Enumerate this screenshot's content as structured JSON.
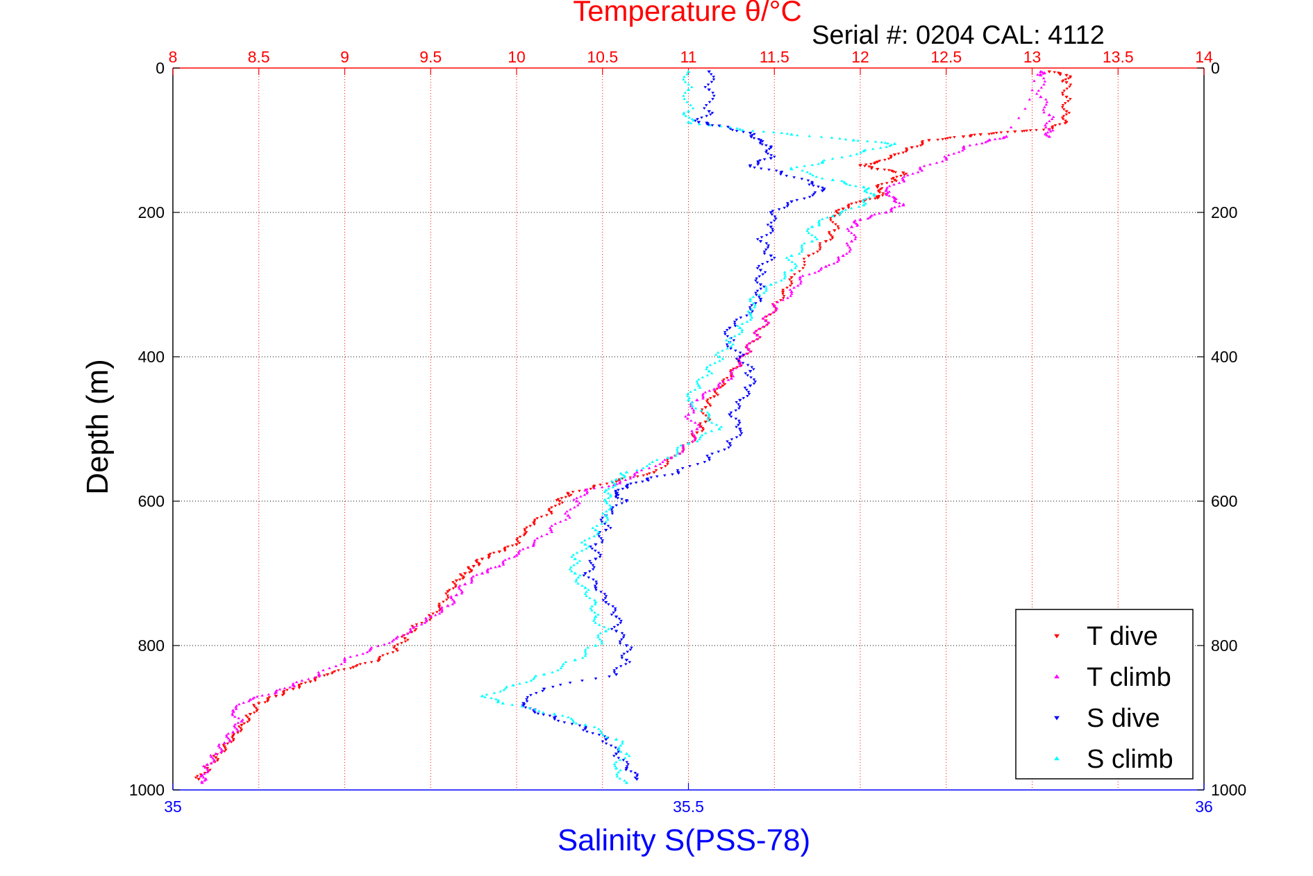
{
  "chart_data": {
    "type": "scatter",
    "serial_text": "Serial #: 0204  CAL: 4112",
    "top_axis": {
      "label": "Temperature θ/°C",
      "range": [
        8,
        14
      ],
      "ticks": [
        "8",
        "8.5",
        "9",
        "9.5",
        "10",
        "10.5",
        "11",
        "11.5",
        "12",
        "12.5",
        "13",
        "13.5",
        "14"
      ],
      "tick_values": [
        8,
        8.5,
        9,
        9.5,
        10,
        10.5,
        11,
        11.5,
        12,
        12.5,
        13,
        13.5,
        14
      ],
      "color": "#ff0000"
    },
    "bottom_axis": {
      "label": "Salinity S(PSS-78)",
      "range": [
        35,
        36
      ],
      "ticks": [
        "35",
        "35.5",
        "36"
      ],
      "tick_values": [
        35,
        35.5,
        36
      ],
      "color": "#0000ff"
    },
    "y_axis": {
      "label": "Depth (m)",
      "range": [
        0,
        1000
      ],
      "reversed": true,
      "ticks": [
        "0",
        "200",
        "400",
        "600",
        "800",
        "1000"
      ],
      "tick_values": [
        0,
        200,
        400,
        600,
        800,
        1000
      ]
    },
    "grid": true,
    "legend_position": "bottom-right",
    "series": [
      {
        "name": "T dive",
        "axis": "temperature",
        "color": "#ff0000",
        "marker": "triangle-down",
        "points": [
          [
            13.1,
            5
          ],
          [
            13.2,
            10
          ],
          [
            13.2,
            20
          ],
          [
            13.2,
            40
          ],
          [
            13.2,
            60
          ],
          [
            13.2,
            75
          ],
          [
            13.1,
            85
          ],
          [
            12.9,
            88
          ],
          [
            12.7,
            92
          ],
          [
            12.6,
            95
          ],
          [
            12.4,
            100
          ],
          [
            12.3,
            110
          ],
          [
            12.2,
            120
          ],
          [
            12.1,
            130
          ],
          [
            12.0,
            135
          ],
          [
            12.1,
            140
          ],
          [
            12.25,
            145
          ],
          [
            12.2,
            155
          ],
          [
            12.1,
            165
          ],
          [
            12.15,
            175
          ],
          [
            12.1,
            180
          ],
          [
            12.0,
            185
          ],
          [
            11.9,
            195
          ],
          [
            11.85,
            205
          ],
          [
            11.85,
            225
          ],
          [
            11.8,
            240
          ],
          [
            11.7,
            260
          ],
          [
            11.6,
            290
          ],
          [
            11.55,
            310
          ],
          [
            11.5,
            330
          ],
          [
            11.45,
            350
          ],
          [
            11.4,
            370
          ],
          [
            11.35,
            390
          ],
          [
            11.3,
            410
          ],
          [
            11.25,
            425
          ],
          [
            11.2,
            440
          ],
          [
            11.15,
            455
          ],
          [
            11.1,
            470
          ],
          [
            11.1,
            490
          ],
          [
            11.05,
            505
          ],
          [
            11.0,
            520
          ],
          [
            10.9,
            540
          ],
          [
            10.8,
            560
          ],
          [
            10.6,
            570
          ],
          [
            10.45,
            580
          ],
          [
            10.3,
            590
          ],
          [
            10.25,
            600
          ],
          [
            10.2,
            615
          ],
          [
            10.1,
            630
          ],
          [
            10.05,
            645
          ],
          [
            10.0,
            660
          ],
          [
            9.9,
            670
          ],
          [
            9.8,
            680
          ],
          [
            9.75,
            690
          ],
          [
            9.7,
            700
          ],
          [
            9.65,
            710
          ],
          [
            9.6,
            725
          ],
          [
            9.55,
            745
          ],
          [
            9.5,
            760
          ],
          [
            9.4,
            775
          ],
          [
            9.35,
            790
          ],
          [
            9.3,
            805
          ],
          [
            9.2,
            820
          ],
          [
            9.05,
            830
          ],
          [
            8.9,
            840
          ],
          [
            8.8,
            850
          ],
          [
            8.7,
            860
          ],
          [
            8.6,
            870
          ],
          [
            8.5,
            880
          ],
          [
            8.45,
            895
          ],
          [
            8.4,
            910
          ],
          [
            8.35,
            925
          ],
          [
            8.3,
            940
          ],
          [
            8.25,
            955
          ],
          [
            8.2,
            970
          ],
          [
            8.15,
            985
          ]
        ]
      },
      {
        "name": "T climb",
        "axis": "temperature",
        "color": "#ff00ff",
        "marker": "triangle-up",
        "points": [
          [
            13.1,
            95
          ],
          [
            13.1,
            85
          ],
          [
            13.1,
            65
          ],
          [
            13.05,
            40
          ],
          [
            13.05,
            10
          ],
          [
            13.05,
            5
          ],
          [
            12.85,
            95
          ],
          [
            12.75,
            100
          ],
          [
            12.6,
            110
          ],
          [
            12.5,
            125
          ],
          [
            12.35,
            140
          ],
          [
            12.25,
            155
          ],
          [
            12.15,
            170
          ],
          [
            12.2,
            180
          ],
          [
            12.25,
            190
          ],
          [
            12.15,
            200
          ],
          [
            12.0,
            210
          ],
          [
            11.95,
            220
          ],
          [
            11.95,
            240
          ],
          [
            11.9,
            260
          ],
          [
            11.8,
            275
          ],
          [
            11.65,
            290
          ],
          [
            11.6,
            310
          ],
          [
            11.5,
            330
          ],
          [
            11.45,
            350
          ],
          [
            11.4,
            370
          ],
          [
            11.35,
            390
          ],
          [
            11.3,
            410
          ],
          [
            11.25,
            430
          ],
          [
            11.15,
            445
          ],
          [
            11.05,
            460
          ],
          [
            11.0,
            480
          ],
          [
            11.05,
            500
          ],
          [
            11.0,
            520
          ],
          [
            10.9,
            540
          ],
          [
            10.7,
            560
          ],
          [
            10.6,
            575
          ],
          [
            10.4,
            585
          ],
          [
            10.35,
            600
          ],
          [
            10.3,
            620
          ],
          [
            10.2,
            640
          ],
          [
            10.1,
            660
          ],
          [
            10.0,
            675
          ],
          [
            9.9,
            690
          ],
          [
            9.8,
            700
          ],
          [
            9.7,
            715
          ],
          [
            9.65,
            730
          ],
          [
            9.6,
            745
          ],
          [
            9.5,
            760
          ],
          [
            9.4,
            775
          ],
          [
            9.3,
            790
          ],
          [
            9.15,
            805
          ],
          [
            9.0,
            820
          ],
          [
            8.85,
            840
          ],
          [
            8.7,
            855
          ],
          [
            8.6,
            865
          ],
          [
            8.45,
            875
          ],
          [
            8.35,
            890
          ],
          [
            8.4,
            905
          ],
          [
            8.35,
            920
          ],
          [
            8.3,
            935
          ],
          [
            8.25,
            950
          ],
          [
            8.2,
            965
          ],
          [
            8.17,
            980
          ],
          [
            8.17,
            990
          ]
        ]
      },
      {
        "name": "S dive",
        "axis": "salinity",
        "color": "#0000ff",
        "marker": "triangle-down",
        "points": [
          [
            35.52,
            5
          ],
          [
            35.52,
            30
          ],
          [
            35.52,
            60
          ],
          [
            35.51,
            75
          ],
          [
            35.53,
            80
          ],
          [
            35.56,
            90
          ],
          [
            35.57,
            100
          ],
          [
            35.58,
            110
          ],
          [
            35.58,
            125
          ],
          [
            35.56,
            135
          ],
          [
            35.59,
            145
          ],
          [
            35.62,
            160
          ],
          [
            35.63,
            170
          ],
          [
            35.6,
            185
          ],
          [
            35.58,
            200
          ],
          [
            35.58,
            220
          ],
          [
            35.57,
            240
          ],
          [
            35.58,
            260
          ],
          [
            35.57,
            280
          ],
          [
            35.57,
            300
          ],
          [
            35.57,
            320
          ],
          [
            35.56,
            340
          ],
          [
            35.54,
            360
          ],
          [
            35.54,
            380
          ],
          [
            35.55,
            400
          ],
          [
            35.56,
            420
          ],
          [
            35.56,
            440
          ],
          [
            35.55,
            460
          ],
          [
            35.54,
            480
          ],
          [
            35.55,
            500
          ],
          [
            35.54,
            520
          ],
          [
            35.52,
            540
          ],
          [
            35.49,
            560
          ],
          [
            35.46,
            570
          ],
          [
            35.44,
            580
          ],
          [
            35.43,
            590
          ],
          [
            35.44,
            600
          ],
          [
            35.42,
            620
          ],
          [
            35.42,
            640
          ],
          [
            35.41,
            660
          ],
          [
            35.41,
            680
          ],
          [
            35.4,
            700
          ],
          [
            35.41,
            720
          ],
          [
            35.42,
            740
          ],
          [
            35.43,
            760
          ],
          [
            35.43,
            780
          ],
          [
            35.44,
            800
          ],
          [
            35.44,
            820
          ],
          [
            35.43,
            840
          ],
          [
            35.36,
            860
          ],
          [
            35.34,
            880
          ],
          [
            35.35,
            890
          ],
          [
            35.37,
            900
          ],
          [
            35.4,
            915
          ],
          [
            35.42,
            930
          ],
          [
            35.43,
            950
          ],
          [
            35.44,
            970
          ],
          [
            35.45,
            985
          ]
        ]
      },
      {
        "name": "S climb",
        "axis": "salinity",
        "color": "#00ffff",
        "marker": "triangle-up",
        "points": [
          [
            35.5,
            5
          ],
          [
            35.5,
            30
          ],
          [
            35.5,
            60
          ],
          [
            35.5,
            75
          ],
          [
            35.55,
            85
          ],
          [
            35.6,
            92
          ],
          [
            35.66,
            100
          ],
          [
            35.7,
            105
          ],
          [
            35.67,
            115
          ],
          [
            35.63,
            130
          ],
          [
            35.6,
            140
          ],
          [
            35.64,
            155
          ],
          [
            35.67,
            165
          ],
          [
            35.68,
            175
          ],
          [
            35.67,
            190
          ],
          [
            35.64,
            205
          ],
          [
            35.62,
            220
          ],
          [
            35.62,
            240
          ],
          [
            35.6,
            260
          ],
          [
            35.6,
            280
          ],
          [
            35.58,
            300
          ],
          [
            35.56,
            320
          ],
          [
            35.56,
            340
          ],
          [
            35.55,
            360
          ],
          [
            35.54,
            380
          ],
          [
            35.53,
            400
          ],
          [
            35.52,
            420
          ],
          [
            35.51,
            440
          ],
          [
            35.5,
            460
          ],
          [
            35.52,
            480
          ],
          [
            35.53,
            500
          ],
          [
            35.5,
            520
          ],
          [
            35.48,
            540
          ],
          [
            35.44,
            560
          ],
          [
            35.43,
            570
          ],
          [
            35.42,
            585
          ],
          [
            35.42,
            600
          ],
          [
            35.42,
            620
          ],
          [
            35.41,
            640
          ],
          [
            35.4,
            660
          ],
          [
            35.39,
            680
          ],
          [
            35.39,
            700
          ],
          [
            35.4,
            720
          ],
          [
            35.41,
            740
          ],
          [
            35.41,
            760
          ],
          [
            35.42,
            780
          ],
          [
            35.41,
            800
          ],
          [
            35.39,
            820
          ],
          [
            35.36,
            840
          ],
          [
            35.33,
            855
          ],
          [
            35.3,
            870
          ],
          [
            35.32,
            880
          ],
          [
            35.37,
            895
          ],
          [
            35.4,
            910
          ],
          [
            35.43,
            930
          ],
          [
            35.44,
            950
          ],
          [
            35.43,
            970
          ],
          [
            35.44,
            990
          ]
        ]
      }
    ]
  }
}
